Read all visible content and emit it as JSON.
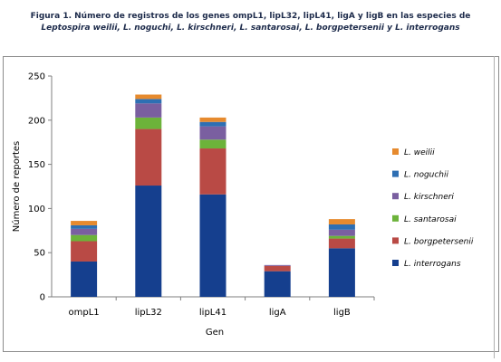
{
  "figure": {
    "caption_line1": "Figura 1. Número de registros de los genes ompL1, lipL32, lipL41, ligA y ligB en las especies de",
    "caption_line2": "Leptospira weilii, L. noguchi,  L. kirschneri, L. santarosai, L. borgpetersenii y L. interrogans"
  },
  "colors": {
    "L. weilii": "#e68a2e",
    "L. noguchii": "#2e6fb3",
    "L. kirschneri": "#7a5fa0",
    "L. santarosai": "#6cb33a",
    "L. borgpetersenii": "#b94a45",
    "L. interrogans": "#153f8e"
  },
  "chart_data": {
    "type": "bar",
    "stacked": true,
    "title": "",
    "xlabel": "Gen",
    "ylabel": "Número de reportes",
    "ylim": [
      0,
      250
    ],
    "yticks": [
      0,
      50,
      100,
      150,
      200,
      250
    ],
    "grid": false,
    "legend_position": "right",
    "categories": [
      "ompL1",
      "lipL32",
      "lipL41",
      "ligA",
      "ligB"
    ],
    "series": [
      {
        "name": "L. interrogans",
        "values": [
          40,
          126,
          116,
          29,
          55
        ]
      },
      {
        "name": "L. borgpetersenii",
        "values": [
          23,
          64,
          52,
          6,
          11
        ]
      },
      {
        "name": "L. santarosai",
        "values": [
          7,
          13,
          10,
          0,
          3
        ]
      },
      {
        "name": "L. kirschneri",
        "values": [
          7,
          16,
          15,
          1,
          7
        ]
      },
      {
        "name": "L. noguchii",
        "values": [
          4,
          5,
          5,
          0,
          6
        ]
      },
      {
        "name": "L. weilii",
        "values": [
          5,
          5,
          5,
          0,
          6
        ]
      }
    ],
    "legend_order": [
      "L. weilii",
      "L. noguchii",
      "L. kirschneri",
      "L. santarosai",
      "L. borgpetersenii",
      "L. interrogans"
    ]
  }
}
